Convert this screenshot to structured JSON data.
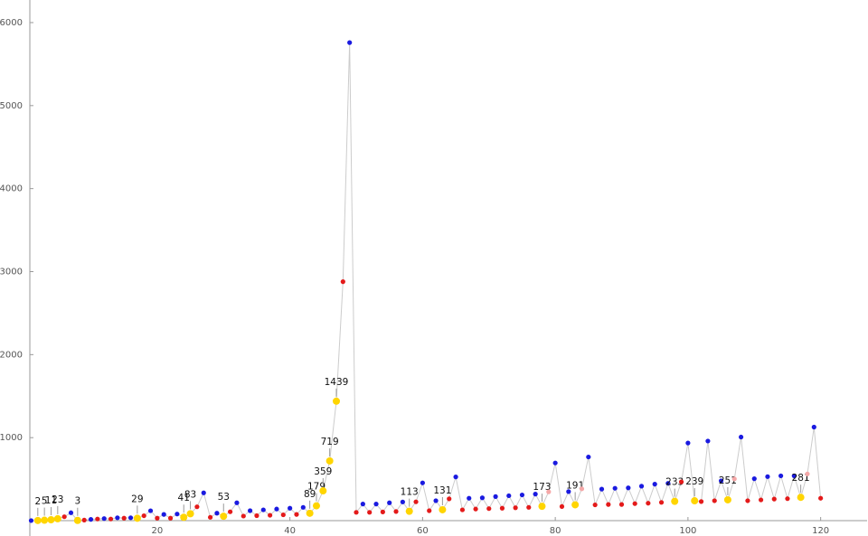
{
  "chart_data": {
    "type": "scatter",
    "x": [
      1,
      2,
      3,
      4,
      5,
      6,
      7,
      8,
      9,
      10,
      11,
      12,
      13,
      14,
      15,
      16,
      17,
      18,
      19,
      20,
      21,
      22,
      23,
      24,
      25,
      26,
      27,
      28,
      29,
      30,
      31,
      32,
      33,
      34,
      35,
      36,
      37,
      38,
      39,
      40,
      41,
      42,
      43,
      44,
      45,
      46,
      47,
      48,
      49,
      50,
      51,
      52,
      53,
      54,
      55,
      56,
      57,
      58,
      59,
      60,
      61,
      62,
      63,
      64,
      65,
      66,
      67,
      68,
      69,
      70,
      71,
      72,
      73,
      74,
      75,
      76,
      77,
      78,
      79,
      80,
      81,
      82,
      83,
      84,
      85,
      86,
      87,
      88,
      89,
      90,
      91,
      92,
      93,
      94,
      95,
      96,
      97,
      98,
      99,
      100,
      101,
      102,
      103,
      104,
      105,
      106,
      107,
      108,
      109,
      110,
      111,
      112,
      113,
      114,
      115,
      116,
      117,
      118,
      119,
      120
    ],
    "values": [
      1,
      2,
      5,
      11,
      23,
      47,
      95,
      3,
      7,
      15,
      20,
      25,
      20,
      35,
      30,
      35,
      29,
      59,
      119,
      30,
      75,
      30,
      80,
      41,
      83,
      167,
      335,
      40,
      90,
      53,
      107,
      215,
      55,
      120,
      60,
      130,
      65,
      140,
      70,
      150,
      75,
      160,
      89,
      179,
      359,
      719,
      1439,
      2879,
      5759,
      100,
      200,
      100,
      200,
      105,
      215,
      110,
      225,
      113,
      227,
      455,
      120,
      240,
      131,
      263,
      527,
      130,
      270,
      140,
      275,
      145,
      290,
      150,
      300,
      155,
      310,
      160,
      320,
      173,
      347,
      695,
      170,
      350,
      191,
      383,
      767,
      190,
      380,
      195,
      390,
      195,
      395,
      205,
      415,
      210,
      440,
      220,
      450,
      233,
      467,
      935,
      239,
      230,
      959,
      240,
      480,
      251,
      503,
      1007,
      240,
      505,
      250,
      530,
      260,
      540,
      265,
      540,
      281,
      563,
      1127,
      270
    ],
    "point_types": [
      "b",
      "y",
      "y",
      "y",
      "y",
      "r",
      "b",
      "y",
      "r",
      "b",
      "r",
      "b",
      "r",
      "b",
      "r",
      "b",
      "y",
      "r",
      "b",
      "r",
      "b",
      "r",
      "b",
      "y",
      "y",
      "r",
      "b",
      "r",
      "b",
      "y",
      "r",
      "b",
      "r",
      "b",
      "r",
      "b",
      "r",
      "b",
      "r",
      "b",
      "r",
      "b",
      "y",
      "y",
      "y",
      "y",
      "y",
      "r",
      "b",
      "r",
      "b",
      "r",
      "b",
      "r",
      "b",
      "r",
      "b",
      "y",
      "r",
      "b",
      "r",
      "b",
      "y",
      "r",
      "b",
      "r",
      "b",
      "r",
      "b",
      "r",
      "b",
      "r",
      "b",
      "r",
      "b",
      "r",
      "b",
      "y",
      "p",
      "b",
      "r",
      "b",
      "y",
      "p",
      "b",
      "r",
      "b",
      "r",
      "b",
      "r",
      "b",
      "r",
      "b",
      "r",
      "b",
      "r",
      "b",
      "y",
      "r",
      "b",
      "y",
      "r",
      "b",
      "r",
      "b",
      "y",
      "p",
      "b",
      "r",
      "b",
      "r",
      "b",
      "r",
      "b",
      "r",
      "b",
      "y",
      "p",
      "b",
      "r"
    ],
    "palette": {
      "b": "#1a1ae0",
      "r": "#e41a1a",
      "y": "#ffd500",
      "p": "#f5a8a8"
    },
    "label_type": "y",
    "line_color": "#cccccc",
    "xlim": [
      0.8,
      127
    ],
    "ylim": [
      -185,
      6272
    ],
    "xticks": [
      20,
      40,
      60,
      80,
      100,
      120
    ],
    "yticks": [
      1000,
      2000,
      3000,
      4000,
      5000,
      6000
    ]
  }
}
